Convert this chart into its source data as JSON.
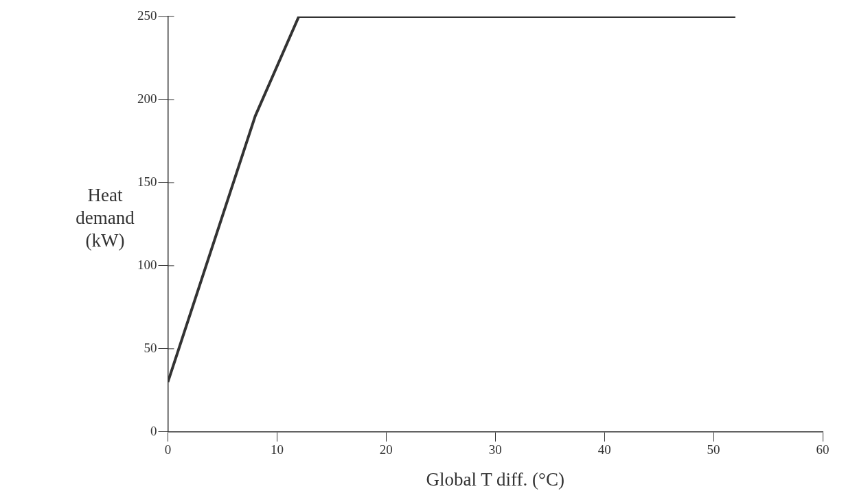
{
  "chart_data": {
    "type": "line",
    "xlabel": "Global T diff. (°C)",
    "ylabel": "Heat demand (kW)",
    "x": [
      0,
      8,
      12,
      52
    ],
    "series": [
      {
        "color": "#333333",
        "values": [
          30,
          190,
          250,
          250
        ]
      }
    ],
    "xlim": [
      0,
      60
    ],
    "xticks": [
      0,
      10,
      20,
      30,
      40,
      50,
      60
    ],
    "ylim": [
      0,
      250
    ],
    "yticks": [
      0,
      50,
      100,
      150,
      200,
      250
    ],
    "grid": false,
    "legend": false,
    "marker": "none",
    "line_style": "solid"
  }
}
